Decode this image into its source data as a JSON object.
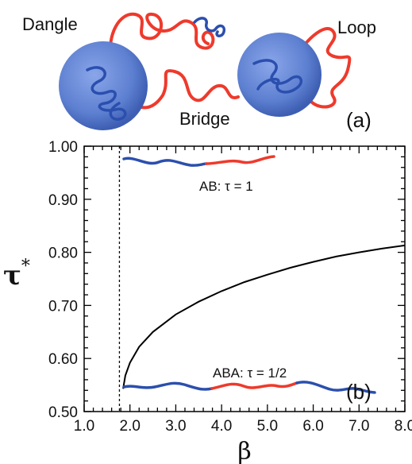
{
  "panel_a": {
    "labels": {
      "dangle": "Dangle",
      "loop": "Loop",
      "bridge": "Bridge"
    },
    "panel_label": "(a)",
    "colors": {
      "sphere": "#5d7fd0",
      "block_a": "#2b4fae",
      "block_b": "#ee3a2c"
    }
  },
  "panel_b": {
    "panel_label": "(b)",
    "annotations": {
      "ab": "AB: τ = 1",
      "aba": "ABA: τ = 1/2"
    }
  },
  "chart_data": {
    "type": "line",
    "xlabel": "β",
    "ylabel": "τ",
    "ylabel_superscript": "*",
    "xlim": [
      1.0,
      8.0
    ],
    "ylim": [
      0.5,
      1.0
    ],
    "xticks": [
      "1.0",
      "2.0",
      "3.0",
      "4.0",
      "5.0",
      "6.0",
      "7.0",
      "8.0"
    ],
    "yticks": [
      "0.50",
      "0.60",
      "0.70",
      "0.80",
      "0.90",
      "1.00"
    ],
    "vertical_line_x": 1.77,
    "series": [
      {
        "x": [
          1.85,
          1.9,
          2.0,
          2.2,
          2.5,
          3.0,
          3.5,
          4.0,
          4.5,
          5.0,
          5.5,
          6.0,
          6.5,
          7.0,
          7.5,
          8.0
        ],
        "y": [
          0.543,
          0.568,
          0.592,
          0.622,
          0.65,
          0.683,
          0.707,
          0.727,
          0.744,
          0.758,
          0.771,
          0.782,
          0.792,
          0.8,
          0.807,
          0.813
        ]
      }
    ],
    "colors": {
      "curve": "#000000",
      "vline": "#000000"
    }
  }
}
